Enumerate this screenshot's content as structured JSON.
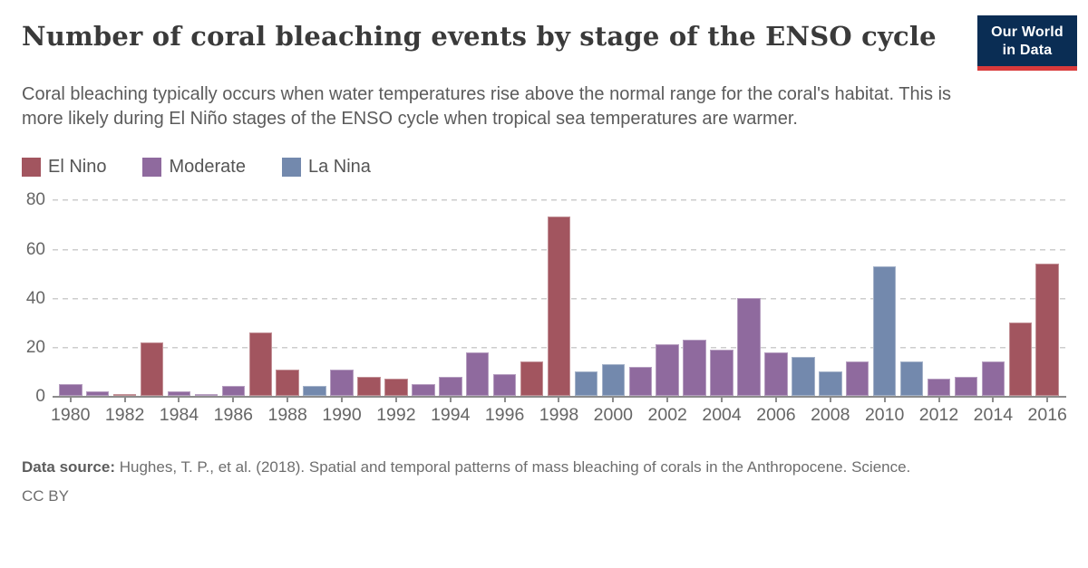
{
  "header": {
    "title": "Number of coral bleaching events by stage of the ENSO cycle",
    "subtitle": "Coral bleaching typically occurs when water temperatures rise above the normal range for the coral's habitat. This is more likely during El Niño stages of the ENSO cycle when tropical sea temperatures are warmer.",
    "logo": {
      "line1": "Our World",
      "line2": "in Data",
      "bg_color": "#0a2d54",
      "stripe_color": "#d93a3b"
    }
  },
  "legend": {
    "items": [
      {
        "key": "el-nino",
        "label": "El Nino",
        "color": "#a2555f"
      },
      {
        "key": "moderate",
        "label": "Moderate",
        "color": "#8f6a9e"
      },
      {
        "key": "la-nina",
        "label": "La Nina",
        "color": "#7389ad"
      }
    ]
  },
  "chart_data": {
    "type": "bar",
    "title": "Number of coral bleaching events by stage of the ENSO cycle",
    "xlabel": "",
    "ylabel": "",
    "ylim": [
      0,
      80
    ],
    "yticks": [
      0,
      20,
      40,
      60,
      80
    ],
    "xtick_years": [
      1980,
      1982,
      1984,
      1986,
      1988,
      1990,
      1992,
      1994,
      1996,
      1998,
      2000,
      2002,
      2004,
      2006,
      2008,
      2010,
      2012,
      2014,
      2016
    ],
    "grid": "horizontal-dashed",
    "legend_position": "top-left",
    "stage_colors": {
      "El Nino": "#a2555f",
      "Moderate": "#8f6a9e",
      "La Nina": "#7389ad"
    },
    "points": [
      {
        "year": 1980,
        "value": 5,
        "stage": "Moderate"
      },
      {
        "year": 1981,
        "value": 2,
        "stage": "Moderate"
      },
      {
        "year": 1982,
        "value": 1,
        "stage": "El Nino"
      },
      {
        "year": 1983,
        "value": 22,
        "stage": "El Nino"
      },
      {
        "year": 1984,
        "value": 2,
        "stage": "Moderate"
      },
      {
        "year": 1985,
        "value": 1,
        "stage": "Moderate"
      },
      {
        "year": 1986,
        "value": 4,
        "stage": "Moderate"
      },
      {
        "year": 1987,
        "value": 26,
        "stage": "El Nino"
      },
      {
        "year": 1988,
        "value": 11,
        "stage": "El Nino"
      },
      {
        "year": 1989,
        "value": 4,
        "stage": "La Nina"
      },
      {
        "year": 1990,
        "value": 11,
        "stage": "Moderate"
      },
      {
        "year": 1991,
        "value": 8,
        "stage": "El Nino"
      },
      {
        "year": 1992,
        "value": 7,
        "stage": "El Nino"
      },
      {
        "year": 1993,
        "value": 5,
        "stage": "Moderate"
      },
      {
        "year": 1994,
        "value": 8,
        "stage": "Moderate"
      },
      {
        "year": 1995,
        "value": 18,
        "stage": "Moderate"
      },
      {
        "year": 1996,
        "value": 9,
        "stage": "Moderate"
      },
      {
        "year": 1997,
        "value": 14,
        "stage": "El Nino"
      },
      {
        "year": 1998,
        "value": 73,
        "stage": "El Nino"
      },
      {
        "year": 1999,
        "value": 10,
        "stage": "La Nina"
      },
      {
        "year": 2000,
        "value": 13,
        "stage": "La Nina"
      },
      {
        "year": 2001,
        "value": 12,
        "stage": "Moderate"
      },
      {
        "year": 2002,
        "value": 21,
        "stage": "Moderate"
      },
      {
        "year": 2003,
        "value": 23,
        "stage": "Moderate"
      },
      {
        "year": 2004,
        "value": 19,
        "stage": "Moderate"
      },
      {
        "year": 2005,
        "value": 40,
        "stage": "Moderate"
      },
      {
        "year": 2006,
        "value": 18,
        "stage": "Moderate"
      },
      {
        "year": 2007,
        "value": 16,
        "stage": "La Nina"
      },
      {
        "year": 2008,
        "value": 10,
        "stage": "La Nina"
      },
      {
        "year": 2009,
        "value": 14,
        "stage": "Moderate"
      },
      {
        "year": 2010,
        "value": 53,
        "stage": "La Nina"
      },
      {
        "year": 2011,
        "value": 14,
        "stage": "La Nina"
      },
      {
        "year": 2012,
        "value": 7,
        "stage": "Moderate"
      },
      {
        "year": 2013,
        "value": 8,
        "stage": "Moderate"
      },
      {
        "year": 2014,
        "value": 14,
        "stage": "Moderate"
      },
      {
        "year": 2015,
        "value": 30,
        "stage": "El Nino"
      },
      {
        "year": 2016,
        "value": 54,
        "stage": "El Nino"
      }
    ]
  },
  "footer": {
    "source_label": "Data source:",
    "source_text": "Hughes, T. P., et al. (2018). Spatial and temporal patterns of mass bleaching of corals in the Anthropocene. Science.",
    "license": "CC BY"
  }
}
